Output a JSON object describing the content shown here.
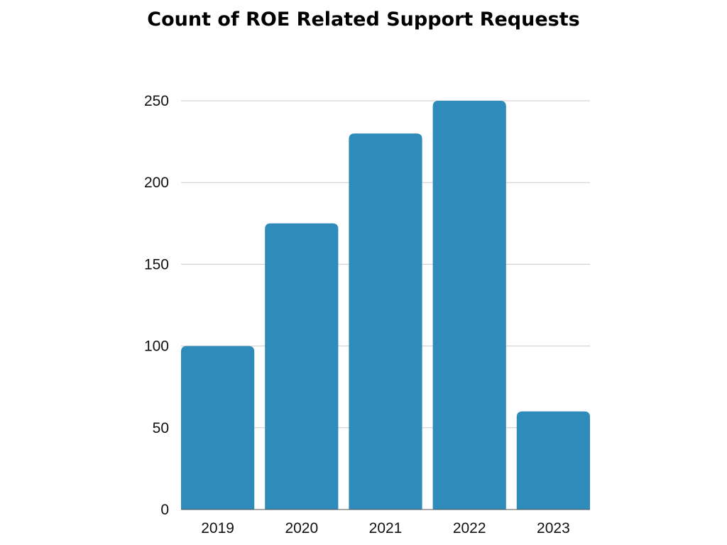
{
  "chart_data": {
    "type": "bar",
    "title": "Count of ROE Related Support Requests",
    "xlabel": "",
    "ylabel": "",
    "categories": [
      "2019",
      "2020",
      "2021",
      "2022",
      "2023"
    ],
    "values": [
      100,
      175,
      230,
      250,
      60
    ],
    "ylim": [
      0,
      250
    ],
    "yticks": [
      0,
      50,
      100,
      150,
      200,
      250
    ],
    "grid": true,
    "legend": "none",
    "bar_color": "#2E8BBA",
    "grid_color": "#CCCCCC"
  }
}
